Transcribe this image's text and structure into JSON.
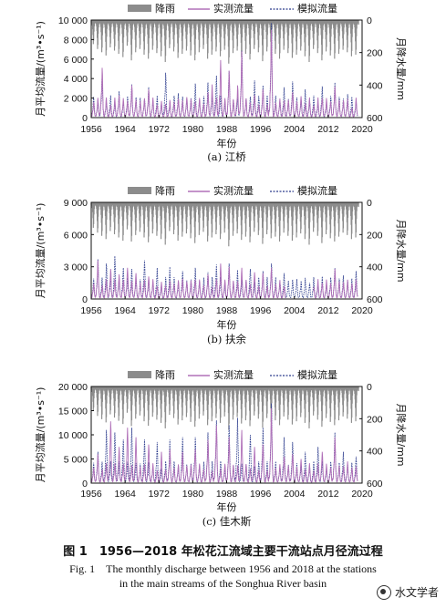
{
  "legend": {
    "rain": "降雨",
    "observed": "实测流量",
    "simulated": "模拟流量"
  },
  "colors": {
    "rain": "#8c8c8c",
    "observed": "#b070b8",
    "simulated": "#2a3a8c"
  },
  "caption": {
    "cn": "图 1　1956—2018 年松花江流域主要干流站点月径流过程",
    "en1": "Fig. 1　The monthly discharge between 1956 and 2018 at the stations",
    "en2": "in the main streams of the Songhua River basin"
  },
  "watermark": "水文学者",
  "chart_data": [
    {
      "type": "line",
      "station": "(a) 江桥",
      "xlabel": "年份",
      "ylabel": "月平均流量/(m³•s⁻¹)",
      "y2label": "月降水量/mm",
      "xlim": [
        1956,
        2020
      ],
      "ylim": [
        0,
        10000
      ],
      "y2lim": [
        0,
        600
      ],
      "y2_inverted": true,
      "x_ticks": [
        "1956",
        "1964",
        "1972",
        "1980",
        "1988",
        "1996",
        "2004",
        "2012",
        "2020"
      ],
      "y_ticks": [
        "0",
        "2 000",
        "4 000",
        "6 000",
        "8 000",
        "10 000"
      ],
      "y2_ticks": [
        "0",
        "200",
        "400",
        "600"
      ],
      "series": [
        {
          "name": "实测流量",
          "peaks": [
            [
              1958,
              5100
            ],
            [
              1962,
              2300
            ],
            [
              1965,
              3300
            ],
            [
              1969,
              2900
            ],
            [
              1972,
              1700
            ],
            [
              1974,
              1800
            ],
            [
              1978,
              2100
            ],
            [
              1983,
              2600
            ],
            [
              1984,
              3400
            ],
            [
              1986,
              5900
            ],
            [
              1988,
              4800
            ],
            [
              1990,
              3300
            ],
            [
              1991,
              6800
            ],
            [
              1994,
              2300
            ],
            [
              1996,
              2900
            ],
            [
              1998,
              9000
            ],
            [
              2003,
              2600
            ],
            [
              2005,
              2200
            ],
            [
              2010,
              2000
            ],
            [
              2013,
              3200
            ],
            [
              2017,
              1000
            ]
          ]
        },
        {
          "name": "模拟流量",
          "peaks": [
            [
              1958,
              4300
            ],
            [
              1962,
              2700
            ],
            [
              1965,
              3400
            ],
            [
              1969,
              3100
            ],
            [
              1973,
              4600
            ],
            [
              1976,
              2500
            ],
            [
              1980,
              3500
            ],
            [
              1983,
              3600
            ],
            [
              1985,
              4300
            ],
            [
              1988,
              4800
            ],
            [
              1991,
              6900
            ],
            [
              1994,
              3800
            ],
            [
              1996,
              3300
            ],
            [
              1998,
              9700
            ],
            [
              2001,
              3100
            ],
            [
              2003,
              3700
            ],
            [
              2006,
              2900
            ],
            [
              2010,
              3200
            ],
            [
              2013,
              3600
            ],
            [
              2016,
              2400
            ],
            [
              2018,
              1600
            ]
          ]
        },
        {
          "name": "降雨",
          "axis": "right",
          "values": [
            140,
            170,
            190,
            210,
            160,
            180,
            200,
            220,
            150,
            240,
            190,
            170,
            205,
            230,
            175,
            195,
            215,
            250,
            165,
            185,
            225,
            200,
            180,
            210,
            240,
            190,
            170,
            230,
            205,
            185,
            215,
            175,
            260,
            195,
            180,
            220,
            200,
            235,
            170,
            190,
            245,
            185,
            210,
            200,
            230,
            175,
            195,
            225,
            205,
            180,
            215,
            250,
            170,
            195,
            240,
            185,
            210,
            230,
            200,
            175,
            190,
            215,
            205
          ]
        }
      ]
    },
    {
      "type": "line",
      "station": "(b) 扶余",
      "xlabel": "年份",
      "ylabel": "月平均流量/(m³•s⁻¹)",
      "y2label": "月降水量/mm",
      "xlim": [
        1956,
        2020
      ],
      "ylim": [
        0,
        9000
      ],
      "y2lim": [
        0,
        600
      ],
      "y2_inverted": true,
      "x_ticks": [
        "1956",
        "1964",
        "1972",
        "1980",
        "1988",
        "1996",
        "2004",
        "2012",
        "2020"
      ],
      "y_ticks": [
        "0",
        "3 000",
        "6 000",
        "9 000"
      ],
      "y2_ticks": [
        "0",
        "200",
        "400",
        "600"
      ],
      "series": [
        {
          "name": "实测流量",
          "peaks": [
            [
              1957,
              3600
            ],
            [
              1960,
              2800
            ],
            [
              1962,
              2300
            ],
            [
              1964,
              2900
            ],
            [
              1966,
              2400
            ],
            [
              1969,
              2100
            ],
            [
              1972,
              1600
            ],
            [
              1974,
              1700
            ],
            [
              1977,
              1900
            ],
            [
              1980,
              1800
            ],
            [
              1983,
              2300
            ],
            [
              1986,
              3300
            ],
            [
              1988,
              3000
            ],
            [
              1991,
              2900
            ],
            [
              1994,
              2500
            ],
            [
              1996,
              2400
            ],
            [
              1998,
              2900
            ],
            [
              2001,
              1200
            ],
            [
              2010,
              1500
            ],
            [
              2013,
              2800
            ],
            [
              2016,
              1800
            ],
            [
              2019,
              2400
            ]
          ]
        },
        {
          "name": "模拟流量",
          "peaks": [
            [
              1957,
              3700
            ],
            [
              1959,
              3300
            ],
            [
              1961,
              4000
            ],
            [
              1963,
              2900
            ],
            [
              1965,
              2800
            ],
            [
              1968,
              3600
            ],
            [
              1971,
              2900
            ],
            [
              1974,
              3000
            ],
            [
              1977,
              2600
            ],
            [
              1980,
              2900
            ],
            [
              1983,
              2500
            ],
            [
              1985,
              3200
            ],
            [
              1988,
              3300
            ],
            [
              1990,
              2700
            ],
            [
              1993,
              2800
            ],
            [
              1996,
              2600
            ],
            [
              1998,
              3300
            ],
            [
              2001,
              2400
            ],
            [
              2003,
              1800
            ],
            [
              2010,
              2100
            ],
            [
              2013,
              2900
            ],
            [
              2015,
              2200
            ],
            [
              2018,
              2600
            ]
          ]
        },
        {
          "name": "降雨",
          "axis": "right",
          "values": [
            150,
            180,
            200,
            220,
            170,
            190,
            210,
            230,
            160,
            235,
            195,
            175,
            210,
            240,
            185,
            200,
            220,
            255,
            170,
            190,
            230,
            205,
            185,
            215,
            245,
            195,
            175,
            235,
            210,
            190,
            220,
            180,
            265,
            200,
            185,
            225,
            205,
            240,
            175,
            195,
            250,
            190,
            215,
            205,
            235,
            180,
            200,
            230,
            210,
            185,
            220,
            255,
            175,
            200,
            245,
            190,
            215,
            235,
            205,
            180,
            195,
            220,
            210
          ]
        }
      ]
    },
    {
      "type": "line",
      "station": "(c) 佳木斯",
      "xlabel": "年份",
      "ylabel": "月平均流量/(m³•s⁻¹)",
      "y2label": "月降水量/mm",
      "xlim": [
        1956,
        2020
      ],
      "ylim": [
        0,
        20000
      ],
      "y2lim": [
        0,
        600
      ],
      "y2_inverted": true,
      "x_ticks": [
        "1956",
        "1964",
        "1972",
        "1980",
        "1988",
        "1996",
        "2004",
        "2012",
        "2020"
      ],
      "y_ticks": [
        "0",
        "5 000",
        "10 000",
        "15 000",
        "20 000"
      ],
      "y2_ticks": [
        "0",
        "200",
        "400",
        "600"
      ],
      "series": [
        {
          "name": "实测流量",
          "peaks": [
            [
              1957,
              6000
            ],
            [
              1960,
              12800
            ],
            [
              1962,
              7500
            ],
            [
              1964,
              11500
            ],
            [
              1966,
              9500
            ],
            [
              1969,
              8000
            ],
            [
              1972,
              6500
            ],
            [
              1974,
              7000
            ],
            [
              1977,
              6500
            ],
            [
              1980,
              7000
            ],
            [
              1983,
              9000
            ],
            [
              1985,
              12000
            ],
            [
              1988,
              9500
            ],
            [
              1991,
              11000
            ],
            [
              1994,
              7500
            ],
            [
              1996,
              8000
            ],
            [
              1998,
              15500
            ],
            [
              2001,
              5500
            ],
            [
              2003,
              6000
            ],
            [
              2005,
              5000
            ],
            [
              2010,
              6500
            ],
            [
              2013,
              9500
            ],
            [
              2016,
              4500
            ],
            [
              2018,
              3500
            ]
          ]
        },
        {
          "name": "模拟流量",
          "peaks": [
            [
              1957,
              6500
            ],
            [
              1959,
              11000
            ],
            [
              1961,
              10500
            ],
            [
              1963,
              9000
            ],
            [
              1965,
              11500
            ],
            [
              1968,
              9000
            ],
            [
              1971,
              8500
            ],
            [
              1974,
              9000
            ],
            [
              1977,
              9500
            ],
            [
              1980,
              9500
            ],
            [
              1983,
              10500
            ],
            [
              1985,
              13000
            ],
            [
              1988,
              12000
            ],
            [
              1990,
              13500
            ],
            [
              1993,
              10000
            ],
            [
              1996,
              11500
            ],
            [
              1998,
              16500
            ],
            [
              2001,
              9500
            ],
            [
              2003,
              8500
            ],
            [
              2006,
              6500
            ],
            [
              2009,
              7500
            ],
            [
              2013,
              10500
            ],
            [
              2015,
              6500
            ],
            [
              2018,
              5500
            ]
          ]
        },
        {
          "name": "降雨",
          "axis": "right",
          "values": [
            145,
            175,
            195,
            215,
            165,
            185,
            205,
            225,
            155,
            238,
            192,
            172,
            208,
            236,
            180,
            198,
            218,
            252,
            168,
            188,
            228,
            202,
            182,
            212,
            242,
            192,
            172,
            232,
            208,
            188,
            218,
            178,
            262,
            198,
            182,
            222,
            202,
            238,
            172,
            192,
            248,
            188,
            212,
            202,
            232,
            178,
            198,
            228,
            208,
            182,
            218,
            252,
            172,
            198,
            242,
            188,
            212,
            232,
            202,
            178,
            192,
            218,
            208
          ]
        }
      ]
    }
  ]
}
